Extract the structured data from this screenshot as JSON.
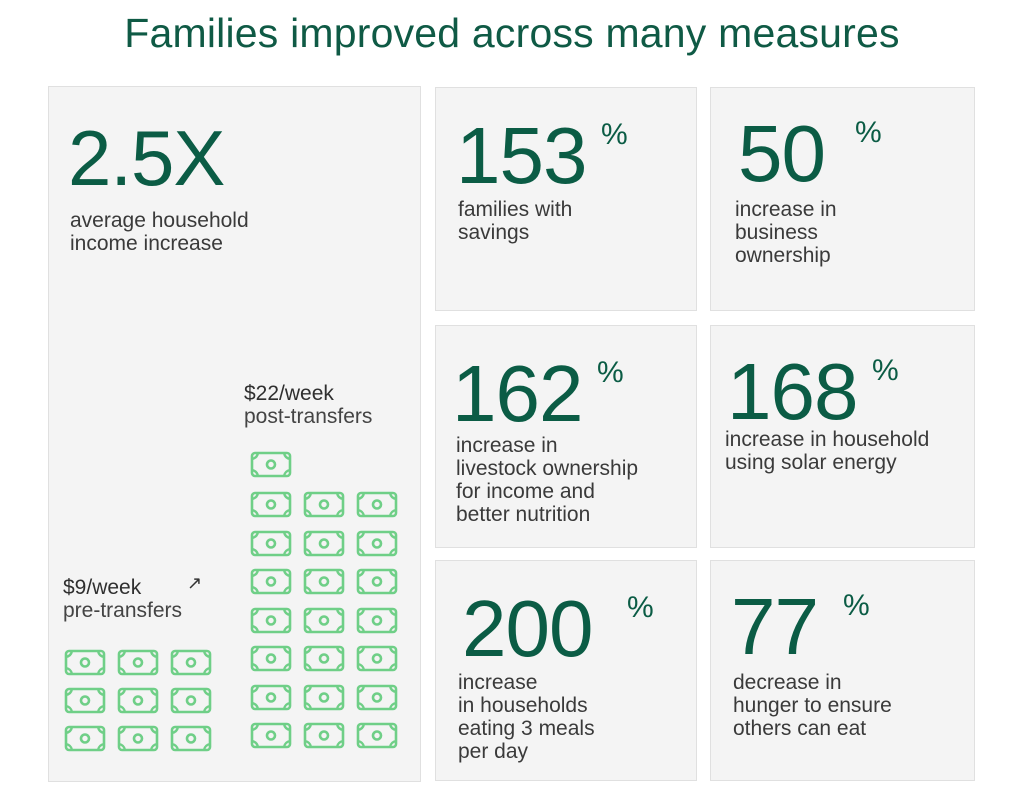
{
  "title": "Families improved across many measures",
  "colors": {
    "accent": "#0b5c45",
    "money": "#6fcf87",
    "card": "#f4f4f4"
  },
  "income": {
    "value": "2.5X",
    "description": "average household\nincome increase",
    "pre": {
      "amount": "$9/week",
      "label": "pre-transfers",
      "bills": 9
    },
    "post": {
      "amount": "$22/week",
      "label": "post-transfers",
      "bills": 22
    },
    "arrow_icon": "↗"
  },
  "stats": [
    {
      "value": "153",
      "unit": "%",
      "description": "families with\nsavings"
    },
    {
      "value": "50",
      "unit": "%",
      "description": "increase in\nbusiness\nownership"
    },
    {
      "value": "162",
      "unit": "%",
      "description": "increase in\nlivestock ownership\nfor income and\nbetter nutrition"
    },
    {
      "value": "168",
      "unit": "%",
      "description": "increase in household\nusing solar energy"
    },
    {
      "value": "200",
      "unit": "%",
      "description": "increase\nin households\neating 3 meals\nper day"
    },
    {
      "value": "77",
      "unit": "%",
      "description": "decrease in\nhunger to ensure\nothers can eat"
    }
  ]
}
